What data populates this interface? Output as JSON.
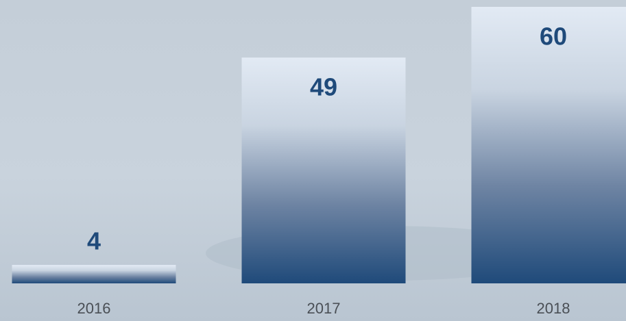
{
  "chart_data": {
    "type": "bar",
    "categories": [
      "2016",
      "2017",
      "2018"
    ],
    "values": [
      4,
      49,
      60
    ],
    "color": "#1f4a7a"
  }
}
